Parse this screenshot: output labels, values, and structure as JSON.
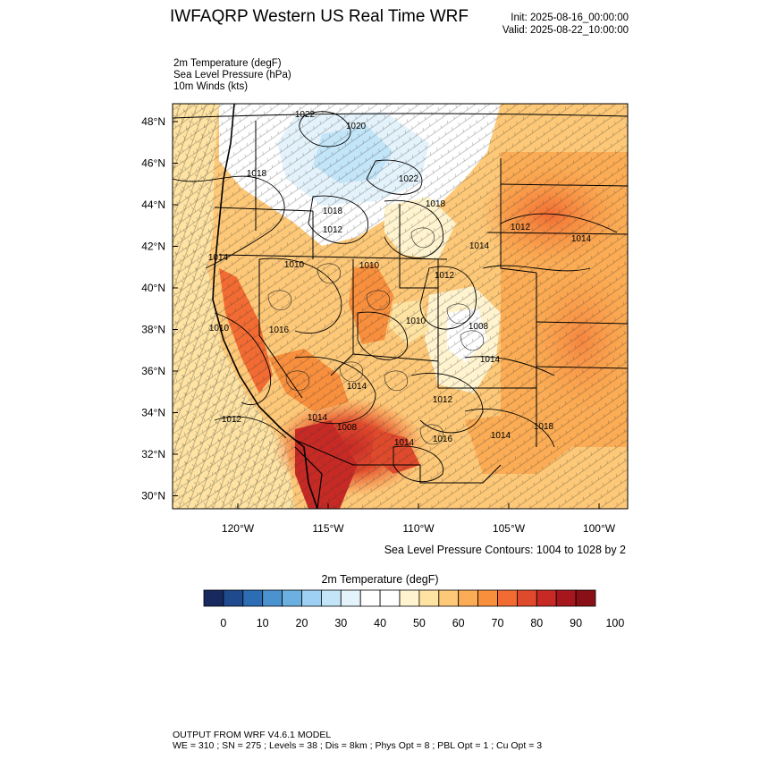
{
  "header": {
    "title": "IWFAQRP Western US Real Time WRF",
    "init": "Init: 2025-08-16_00:00:00",
    "valid": "Valid: 2025-08-22_10:00:00"
  },
  "fields": [
    "2m Temperature   (degF)",
    "Sea Level Pressure   (hPa)",
    "10m Winds   (kts)"
  ],
  "map": {
    "lat_labels": [
      "48°N",
      "46°N",
      "44°N",
      "42°N",
      "40°N",
      "38°N",
      "36°N",
      "34°N",
      "32°N",
      "30°N"
    ],
    "lon_labels": [
      "120°W",
      "115°W",
      "110°W",
      "105°W",
      "100°W"
    ],
    "pressure_labels": [
      "1022",
      "1020",
      "1018",
      "1022",
      "1018",
      "1012",
      "1018",
      "1014",
      "1012",
      "1014",
      "1014",
      "1010",
      "1010",
      "1012",
      "1010",
      "1008",
      "1010",
      "1016",
      "1014",
      "1012",
      "1014",
      "1018",
      "1012",
      "1014",
      "1008",
      "1014",
      "1016",
      "1014"
    ],
    "contour_note": "Sea Level Pressure Contours: 1004 to 1028 by 2"
  },
  "colorbar": {
    "title": "2m Temperature  (degF)",
    "colors": [
      "#17295e",
      "#1f4a8d",
      "#2c6db3",
      "#4b93cf",
      "#6cb0e1",
      "#9dd0f2",
      "#c3e5f8",
      "#e4f3fb",
      "#ffffff",
      "#ffffff",
      "#fff4cf",
      "#ffe3a2",
      "#fdc877",
      "#fbac54",
      "#f88f3d",
      "#f16b32",
      "#e04a2c",
      "#c72a25",
      "#a5161d",
      "#891016"
    ],
    "tick_labels": [
      "0",
      "10",
      "20",
      "30",
      "40",
      "50",
      "60",
      "70",
      "80",
      "90",
      "100"
    ]
  },
  "footer": {
    "line1": "OUTPUT FROM WRF V4.6.1 MODEL",
    "line2": "WE = 310 ; SN = 275 ; Levels = 38 ; Dis = 8km ; Phys Opt = 8 ; PBL Opt = 1 ; Cu Opt = 3"
  }
}
